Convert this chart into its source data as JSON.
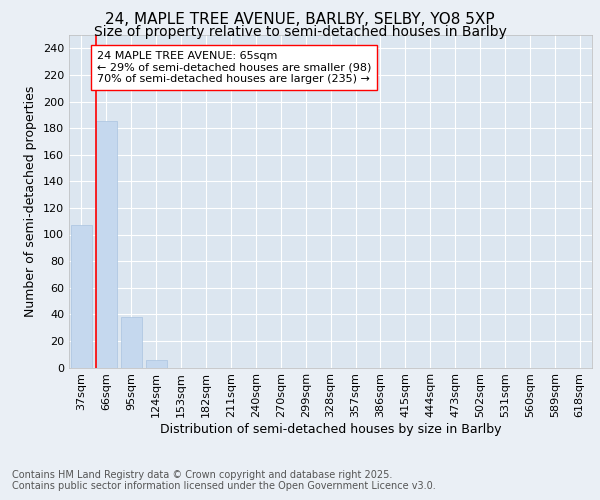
{
  "title_line1": "24, MAPLE TREE AVENUE, BARLBY, SELBY, YO8 5XP",
  "title_line2": "Size of property relative to semi-detached houses in Barlby",
  "xlabel": "Distribution of semi-detached houses by size in Barlby",
  "ylabel": "Number of semi-detached properties",
  "categories": [
    "37sqm",
    "66sqm",
    "95sqm",
    "124sqm",
    "153sqm",
    "182sqm",
    "211sqm",
    "240sqm",
    "270sqm",
    "299sqm",
    "328sqm",
    "357sqm",
    "386sqm",
    "415sqm",
    "444sqm",
    "473sqm",
    "502sqm",
    "531sqm",
    "560sqm",
    "589sqm",
    "618sqm"
  ],
  "values": [
    107,
    185,
    38,
    6,
    0,
    0,
    0,
    0,
    0,
    0,
    0,
    0,
    0,
    0,
    0,
    0,
    0,
    0,
    0,
    0,
    0
  ],
  "bar_color": "#c5d8ee",
  "bar_edge_color": "#aac4e0",
  "annotation_line1": "24 MAPLE TREE AVENUE: 65sqm",
  "annotation_line2": "← 29% of semi-detached houses are smaller (98)",
  "annotation_line3": "70% of semi-detached houses are larger (235) →",
  "ylim": [
    0,
    250
  ],
  "yticks": [
    0,
    20,
    40,
    60,
    80,
    100,
    120,
    140,
    160,
    180,
    200,
    220,
    240
  ],
  "background_color": "#eaeff5",
  "plot_bg_color": "#dce6f0",
  "grid_color": "#ffffff",
  "footer_line1": "Contains HM Land Registry data © Crown copyright and database right 2025.",
  "footer_line2": "Contains public sector information licensed under the Open Government Licence v3.0.",
  "title_fontsize": 11,
  "subtitle_fontsize": 10,
  "axis_label_fontsize": 9,
  "tick_fontsize": 8,
  "annotation_fontsize": 8,
  "footer_fontsize": 7
}
